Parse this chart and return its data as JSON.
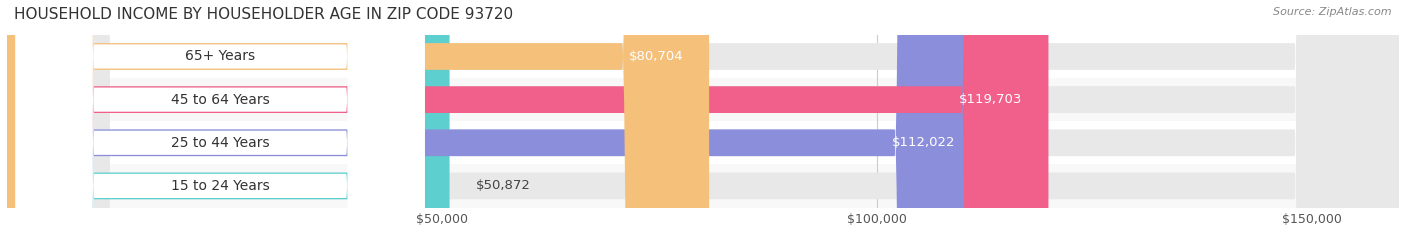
{
  "title": "HOUSEHOLD INCOME BY HOUSEHOLDER AGE IN ZIP CODE 93720",
  "source": "Source: ZipAtlas.com",
  "categories": [
    "15 to 24 Years",
    "25 to 44 Years",
    "45 to 64 Years",
    "65+ Years"
  ],
  "values": [
    50872,
    112022,
    119703,
    80704
  ],
  "bar_colors": [
    "#5ecfcf",
    "#8b8fdb",
    "#f0608a",
    "#f5c07a"
  ],
  "bar_bg_color": "#f0f0f0",
  "label_bg_color": "#ffffff",
  "xmax": 160000,
  "xticks": [
    50000,
    100000,
    150000
  ],
  "xtick_labels": [
    "$50,000",
    "$100,000",
    "$150,000"
  ],
  "value_labels": [
    "$50,872",
    "$112,022",
    "$119,703",
    "$80,704"
  ],
  "figsize": [
    14.06,
    2.33
  ],
  "dpi": 100,
  "bg_color": "#ffffff",
  "row_bg_colors": [
    "#f8f8f8",
    "#ffffff",
    "#f8f8f8",
    "#ffffff"
  ]
}
